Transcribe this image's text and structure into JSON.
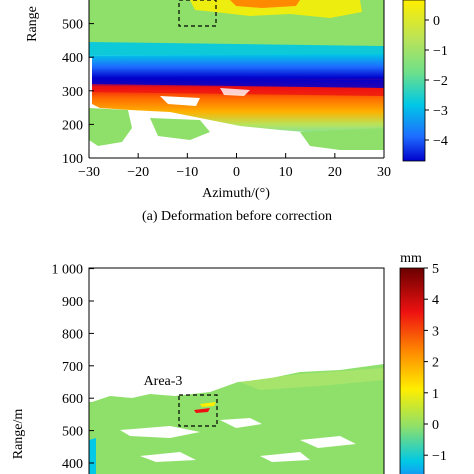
{
  "chart_data": [
    {
      "type": "heatmap",
      "caption": "(a) Deformation before correction",
      "xlabel": "Azimuth/(°)",
      "ylabel": "Range",
      "xlim": [
        -30,
        30
      ],
      "ylim": [
        100,
        600
      ],
      "xticks": [
        -30,
        -20,
        -10,
        0,
        10,
        20,
        30
      ],
      "yticks": [
        100,
        200,
        300,
        400,
        500
      ],
      "colorbar": {
        "unit": "",
        "ticks": [
          0,
          -1,
          -2,
          -3,
          -4
        ],
        "range": [
          -4.6,
          1
        ]
      },
      "annotation": "",
      "grid": false
    },
    {
      "type": "heatmap",
      "caption": "",
      "xlabel": "",
      "ylabel": "Range/m",
      "ylim": [
        350,
        1000
      ],
      "yticks": [
        400,
        500,
        600,
        700,
        800,
        900
      ],
      "yticks_top_label": "1 000",
      "colorbar": {
        "unit": "mm",
        "ticks": [
          5,
          4,
          3,
          2,
          1,
          0,
          -1
        ],
        "range": [
          -1.5,
          5
        ]
      },
      "annotation": "Area-3",
      "grid": false
    }
  ],
  "colors": {
    "scale": [
      "#0000cc",
      "#1e90ff",
      "#00d0c8",
      "#8ee06a",
      "#ffee00",
      "#ff8a00",
      "#ee1111",
      "#8b0000"
    ],
    "background": "#ffffff",
    "axis": "#000000"
  }
}
